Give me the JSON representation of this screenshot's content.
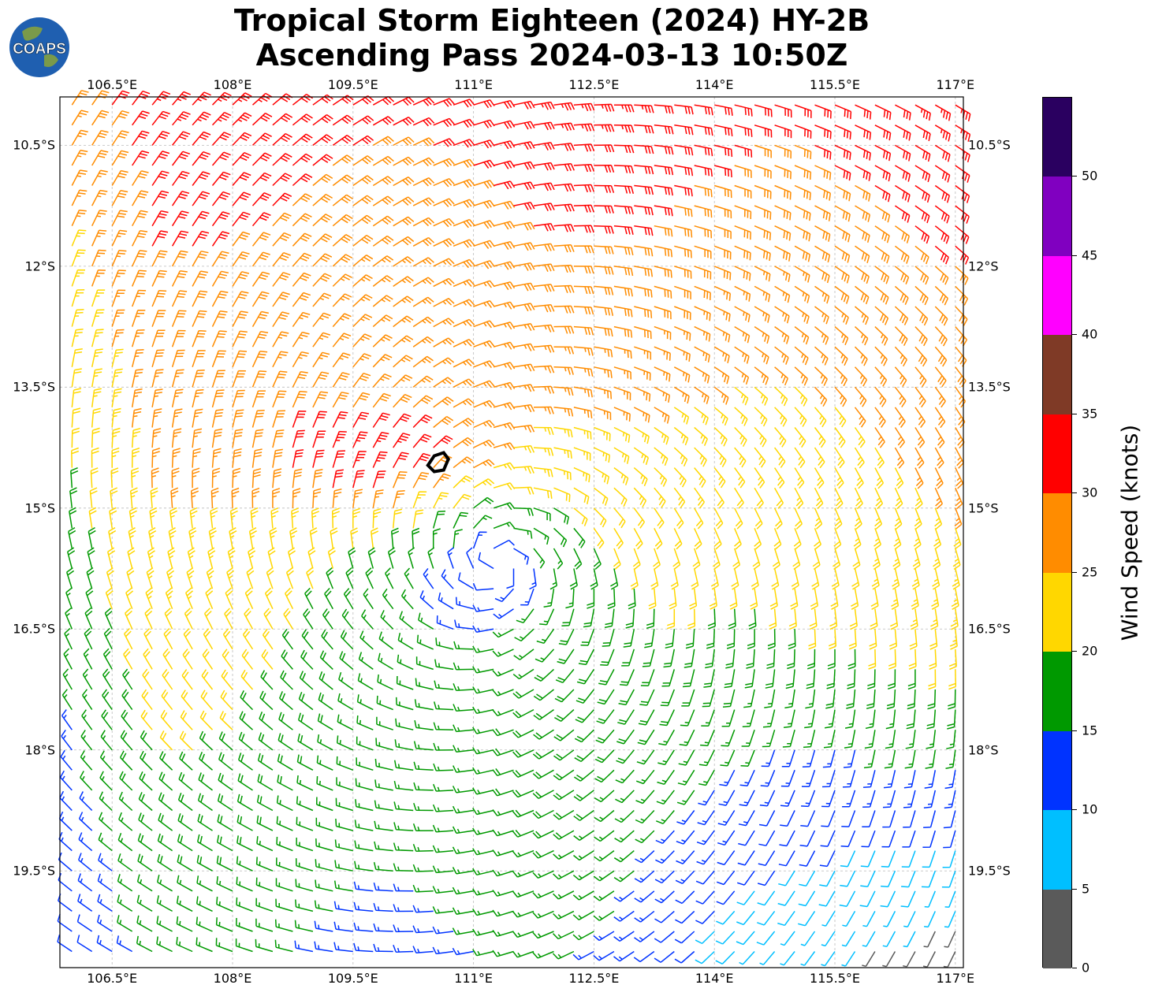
{
  "title": {
    "line1": "Tropical Storm Eighteen (2024) HY-2B",
    "line2": "Ascending Pass 2024-03-13 10:50Z"
  },
  "logo": {
    "text": "COAPS",
    "colors": {
      "ocean": "#1f5fb0",
      "land": "#7a9a4a",
      "text": "#ffffff"
    }
  },
  "map": {
    "lon_range": [
      105.85,
      117.1
    ],
    "lat_range": [
      -9.9,
      -20.7
    ],
    "grid": true,
    "lon_ticks": [
      "106.5°E",
      "108°E",
      "109.5°E",
      "111°E",
      "112.5°E",
      "114°E",
      "115.5°E",
      "117°E"
    ],
    "lon_tick_values": [
      106.5,
      108,
      109.5,
      111,
      112.5,
      114,
      115.5,
      117
    ],
    "lat_ticks": [
      "10.5°S",
      "12°S",
      "13.5°S",
      "15°S",
      "16.5°S",
      "18°S",
      "19.5°S"
    ],
    "lat_tick_values": [
      -10.5,
      -12,
      -13.5,
      -15,
      -16.5,
      -18,
      -19.5
    ],
    "storm_center": {
      "lon": 110.55,
      "lat": -14.45
    },
    "low_center": {
      "lon": 111.3,
      "lat": -15.7
    },
    "max_wind_center": {
      "lon": 109.8,
      "lat": -14.4
    }
  },
  "colorbar": {
    "label": "Wind Speed (knots)",
    "ticks": [
      "0",
      "5",
      "10",
      "15",
      "20",
      "25",
      "30",
      "35",
      "40",
      "45",
      "50"
    ],
    "tick_values": [
      0,
      5,
      10,
      15,
      20,
      25,
      30,
      35,
      40,
      45,
      50
    ],
    "max": 55,
    "bins": [
      {
        "from": 0,
        "to": 5,
        "color": "#5a5a5a"
      },
      {
        "from": 5,
        "to": 10,
        "color": "#00bfff"
      },
      {
        "from": 10,
        "to": 15,
        "color": "#0033ff"
      },
      {
        "from": 15,
        "to": 20,
        "color": "#009900"
      },
      {
        "from": 20,
        "to": 25,
        "color": "#ffd700"
      },
      {
        "from": 25,
        "to": 30,
        "color": "#ff8c00"
      },
      {
        "from": 30,
        "to": 35,
        "color": "#ff0000"
      },
      {
        "from": 35,
        "to": 40,
        "color": "#7f3a26"
      },
      {
        "from": 40,
        "to": 45,
        "color": "#ff00ff"
      },
      {
        "from": 45,
        "to": 50,
        "color": "#8000c0"
      },
      {
        "from": 50,
        "to": 55,
        "color": "#2a0060"
      }
    ]
  }
}
